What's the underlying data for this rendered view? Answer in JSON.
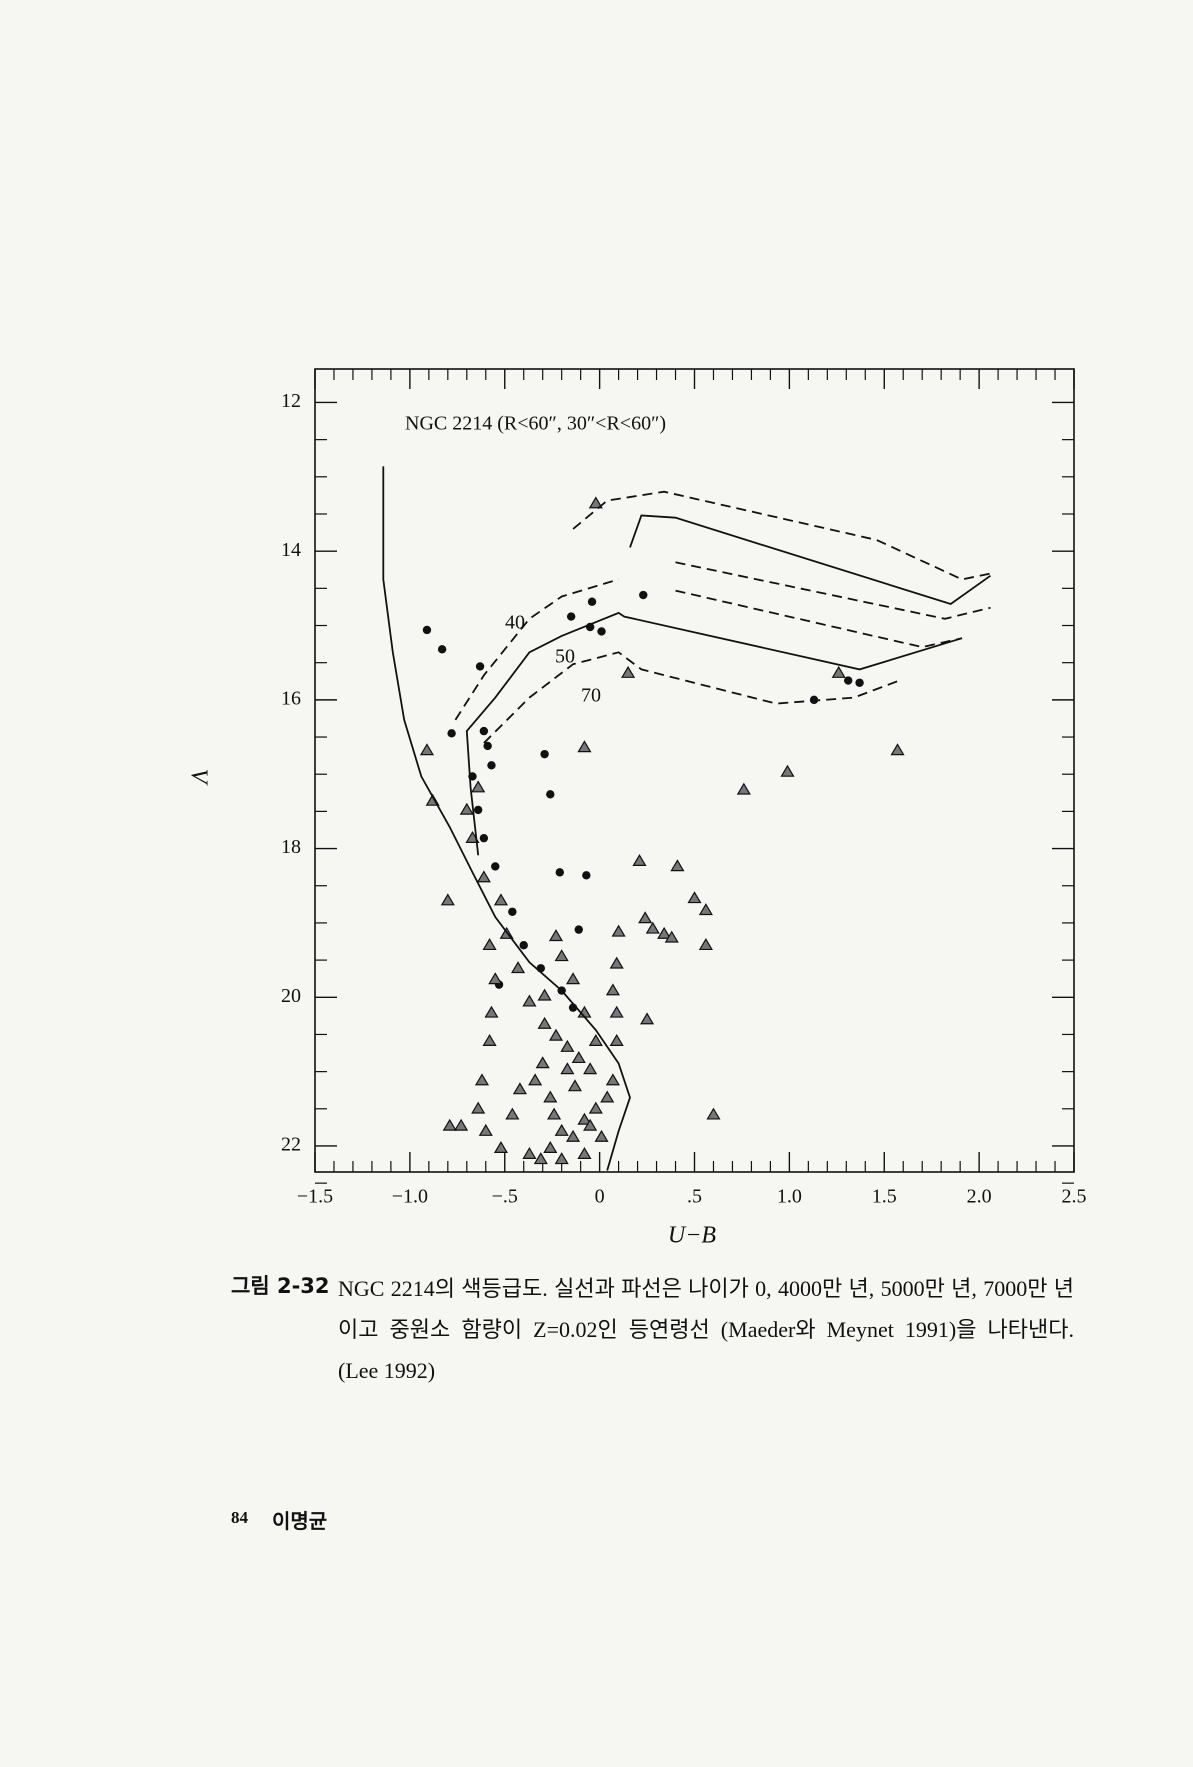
{
  "chart_data": {
    "type": "scatter",
    "annotation": "NGC 2214 (R<60″, 30″<R<60″)",
    "xlabel": "U−B",
    "ylabel": "V",
    "xlim": [
      -1.5,
      2.5
    ],
    "ylim": [
      11.55,
      22.35
    ],
    "y_inverted": true,
    "xticks": [
      {
        "value": -1.5,
        "label": "−1.5"
      },
      {
        "value": -1.0,
        "label": "−1.0"
      },
      {
        "value": -0.5,
        "label": "−.5"
      },
      0,
      {
        "value": 0.5,
        "label": ".5"
      },
      {
        "value": 1.0,
        "label": "1.0"
      },
      {
        "value": 1.5,
        "label": "1.5"
      },
      {
        "value": 2.0,
        "label": "2.0"
      },
      {
        "value": 2.5,
        "label": "2.5"
      }
    ],
    "yticks": [
      12,
      14,
      16,
      18,
      20,
      22
    ],
    "xminorticks": [
      -1.4,
      -1.3,
      -1.2,
      -1.1,
      -0.9,
      -0.8,
      -0.7,
      -0.6,
      -0.4,
      -0.3,
      -0.2,
      -0.1,
      0.1,
      0.2,
      0.3,
      0.4,
      0.6,
      0.7,
      0.8,
      0.9,
      1.1,
      1.2,
      1.3,
      1.4,
      1.6,
      1.7,
      1.8,
      1.9,
      2.1,
      2.2,
      2.3,
      2.4
    ],
    "yminorticks": [
      12.5,
      13,
      13.5,
      14.5,
      15,
      15.5,
      16.5,
      17,
      17.5,
      18.5,
      19,
      19.5,
      20.5,
      21,
      21.5,
      22.5
    ],
    "series": [
      {
        "marker": "circle",
        "color": "#111111",
        "x": [
          -0.91,
          -0.83,
          -0.63,
          -0.78,
          -0.59,
          -0.29,
          -0.26,
          -0.15,
          -0.04,
          -0.05,
          0.01,
          0.23,
          -0.21,
          -0.07,
          -0.11,
          -0.53,
          -0.67,
          -0.64,
          -0.61,
          -0.55,
          -0.46,
          -0.4,
          -0.31,
          -0.2,
          -0.14,
          1.13,
          1.31,
          1.37,
          -0.61,
          -0.57
        ],
        "values": [
          15.06,
          15.32,
          15.55,
          16.45,
          16.62,
          16.73,
          17.27,
          14.88,
          14.68,
          15.02,
          15.08,
          14.59,
          18.32,
          18.36,
          19.09,
          19.83,
          17.03,
          17.48,
          17.86,
          18.24,
          18.85,
          19.3,
          19.61,
          19.91,
          20.14,
          16.0,
          15.74,
          15.77,
          16.42,
          16.88
        ]
      },
      {
        "marker": "triangle",
        "color": "#111111",
        "x": [
          -0.91,
          -0.88,
          -0.08,
          0.76,
          0.99,
          1.57,
          0.21,
          0.41,
          0.5,
          0.56,
          0.24,
          0.28,
          0.34,
          0.38,
          0.56,
          0.1,
          0.09,
          0.07,
          0.09,
          0.25,
          0.09,
          -0.8,
          -0.58,
          -0.55,
          -0.57,
          -0.58,
          -0.62,
          -0.64,
          -0.79,
          -0.73,
          -0.6,
          -0.52,
          -0.46,
          -0.42,
          -0.34,
          -0.3,
          -0.26,
          -0.24,
          -0.2,
          -0.14,
          -0.08,
          -0.02,
          0.04,
          0.07,
          -0.05,
          -0.11,
          -0.17,
          -0.23,
          -0.29,
          -0.37,
          -0.43,
          -0.49,
          -0.52,
          -0.61,
          -0.67,
          -0.7,
          -0.64,
          0.6,
          -0.37,
          -0.31,
          -0.26,
          -0.2,
          -0.08,
          -0.17,
          -0.13,
          -0.05,
          0.01,
          0.15,
          -0.02,
          -0.23,
          -0.14,
          -0.08,
          -0.02,
          -0.29,
          1.26,
          -0.2
        ],
        "values": [
          16.68,
          17.36,
          16.64,
          17.21,
          16.97,
          16.68,
          18.17,
          18.24,
          18.67,
          18.83,
          18.94,
          19.08,
          19.15,
          19.2,
          19.3,
          19.12,
          19.55,
          19.91,
          20.21,
          20.3,
          20.59,
          18.7,
          19.3,
          19.76,
          20.21,
          20.59,
          21.12,
          21.5,
          21.73,
          21.73,
          21.8,
          22.03,
          21.58,
          21.24,
          21.12,
          20.89,
          21.35,
          21.58,
          21.8,
          21.88,
          21.65,
          21.5,
          21.35,
          21.12,
          20.97,
          20.82,
          20.67,
          20.52,
          20.36,
          20.06,
          19.61,
          19.15,
          18.7,
          18.39,
          17.86,
          17.48,
          17.18,
          21.58,
          22.11,
          22.18,
          22.03,
          22.18,
          22.11,
          20.97,
          21.2,
          21.73,
          21.88,
          15.64,
          13.36,
          19.18,
          19.76,
          20.21,
          20.59,
          19.98,
          15.64,
          19.45
        ]
      },
      {
        "type": "line",
        "dash": "solid",
        "color": "#111111",
        "x": [
          -1.14,
          -1.14,
          -1.09,
          -1.03,
          -0.94,
          -0.79,
          -0.67,
          -0.55,
          -0.37,
          -0.2,
          -0.02,
          0.1,
          0.16,
          0.1,
          0.04
        ],
        "values": [
          12.86,
          14.38,
          15.36,
          16.27,
          17.03,
          17.71,
          18.32,
          18.92,
          19.53,
          19.91,
          20.44,
          20.89,
          21.35,
          21.8,
          22.33
        ]
      },
      {
        "type": "line",
        "name": "40",
        "dash": "dashed",
        "color": "#111111",
        "x": [
          -0.76,
          -0.61,
          -0.37,
          -0.2,
          0.1,
          null,
          -0.14,
          0.04,
          0.34,
          1.46,
          1.91,
          2.06,
          null,
          0.4,
          1.82,
          2.06
        ],
        "values": [
          16.27,
          15.67,
          14.91,
          14.61,
          14.38,
          null,
          13.7,
          13.32,
          13.2,
          13.85,
          14.38,
          14.3,
          null,
          14.15,
          14.91,
          14.76
        ]
      },
      {
        "type": "line",
        "name": "50",
        "dash": "solid",
        "color": "#111111",
        "x": [
          -0.64,
          -0.68,
          -0.7,
          -0.55,
          -0.37,
          -0.2,
          0.1,
          0.13,
          1.37,
          1.91,
          null,
          0.16,
          0.22,
          0.4,
          1.85,
          2.06
        ],
        "values": [
          18.09,
          17.18,
          16.42,
          15.97,
          15.36,
          15.14,
          14.83,
          14.88,
          15.59,
          15.17,
          null,
          13.95,
          13.52,
          13.55,
          14.71,
          14.33
        ]
      },
      {
        "type": "line",
        "name": "70",
        "dash": "dashed",
        "color": "#111111",
        "x": [
          -0.61,
          -0.37,
          -0.14,
          0.1,
          0.22,
          0.93,
          1.34,
          1.58,
          null,
          0.4,
          1.7,
          1.91
        ],
        "values": [
          16.58,
          15.97,
          15.52,
          15.36,
          15.59,
          16.05,
          15.97,
          15.74,
          null,
          14.53,
          15.29,
          15.17
        ]
      }
    ]
  },
  "caption": {
    "label": "그림 2-32",
    "text": "NGC 2214의 색등급도. 실선과 파선은 나이가 0, 4000만 년, 5000만 년, 7000만 년이고 중원소 함량이 Z=0.02인 등연령선 (Maeder와 Meynet 1991)을 나타낸다. (Lee 1992)"
  },
  "footer": {
    "page": "84",
    "author": "이명균"
  }
}
